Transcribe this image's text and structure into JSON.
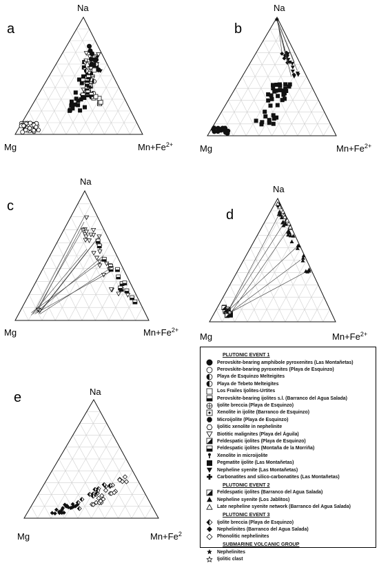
{
  "vertex_labels": {
    "top": "Na",
    "left": "Mg",
    "right_base": "Mn+Fe",
    "right_sup": "2+",
    "right_sup_e": "2"
  },
  "panels": [
    {
      "letter": "a"
    },
    {
      "letter": "b"
    },
    {
      "letter": "c"
    },
    {
      "letter": "d"
    },
    {
      "letter": "e"
    }
  ],
  "legend": {
    "groups": [
      {
        "title": "PLUTONIC EVENT 1",
        "items": [
          {
            "symbol": "circle-filled",
            "label": "Perovskite-bearing amphibole pyroxenites (Las Montañetas)"
          },
          {
            "symbol": "circle-open",
            "label": "Perovskite-bearing pyroxenites (Playa de Esquinzo)"
          },
          {
            "symbol": "circle-half",
            "label": "Playa de Esquinzo Melteigites"
          },
          {
            "symbol": "circle-half",
            "label": "Playa de Tebeto Melteigites"
          },
          {
            "symbol": "square-open",
            "label": "Los Frailes Ijolites-Urtites"
          },
          {
            "symbol": "square-half",
            "label": "Perovskite-bearing ijolites s.l. (Barranco del Agua Salada)"
          },
          {
            "symbol": "circle-cross",
            "label": "Ijolite breccia (Playa de Esquinzo)"
          },
          {
            "symbol": "square-dot",
            "label": "Xenolite in ijolite (Barranco de Esquinzo)"
          },
          {
            "symbol": "octagon-filled",
            "label": "Microijolite (Playa de Esquinzo)"
          },
          {
            "symbol": "hexagon-open",
            "label": "Ijolitic xenolite in nephelinite"
          },
          {
            "symbol": "triangle-down-open",
            "label": "Biotitic malignites (Playa del Águila)"
          },
          {
            "symbol": "square-diag",
            "label": "Feldespatic ijolites (Playa de Esquinzo)"
          },
          {
            "symbol": "square-half",
            "label": "Feldespatic ijolites (Montaña de la Morriña)"
          },
          {
            "symbol": "keyhole",
            "label": "Xenolite in microijolite"
          },
          {
            "symbol": "square-filled",
            "label": "Pegmatite ijolite (Las Montañetas)"
          },
          {
            "symbol": "triangle-down-filled",
            "label": "Nepheline syenite (Las Montañetas)"
          },
          {
            "symbol": "cross-filled",
            "label": "Carbonatites and silico-carbonatites (Las Montañetas)"
          }
        ]
      },
      {
        "title": "PLUTONIC EVENT 2",
        "items": [
          {
            "symbol": "square-diag",
            "label": "Feldespatic ijolites (Barranco del Agua Salada)"
          },
          {
            "symbol": "triangle-up-filled",
            "label": "Nepheline syenite (Los Jablitos)"
          },
          {
            "symbol": "triangle-up-open",
            "label": "Late nepheline syenite network (Barranco del Agua Salada)"
          }
        ]
      },
      {
        "title": "PLUTONIC EVENT 3",
        "items": [
          {
            "symbol": "diamond-half",
            "label": "Ijolite breccia (Playa de Esquinzo)"
          },
          {
            "symbol": "diamond-filled",
            "label": "Nephelinites (Barranco del Agua Salada)"
          },
          {
            "symbol": "diamond-open",
            "label": "Phonolitic nephelinites"
          }
        ]
      },
      {
        "title": "SUBMARINE VOLCANIC GROUP",
        "items": [
          {
            "symbol": "star-filled",
            "label": "Nephelinites"
          },
          {
            "symbol": "star-open",
            "label": "Ijolitic clast"
          }
        ]
      }
    ]
  }
}
